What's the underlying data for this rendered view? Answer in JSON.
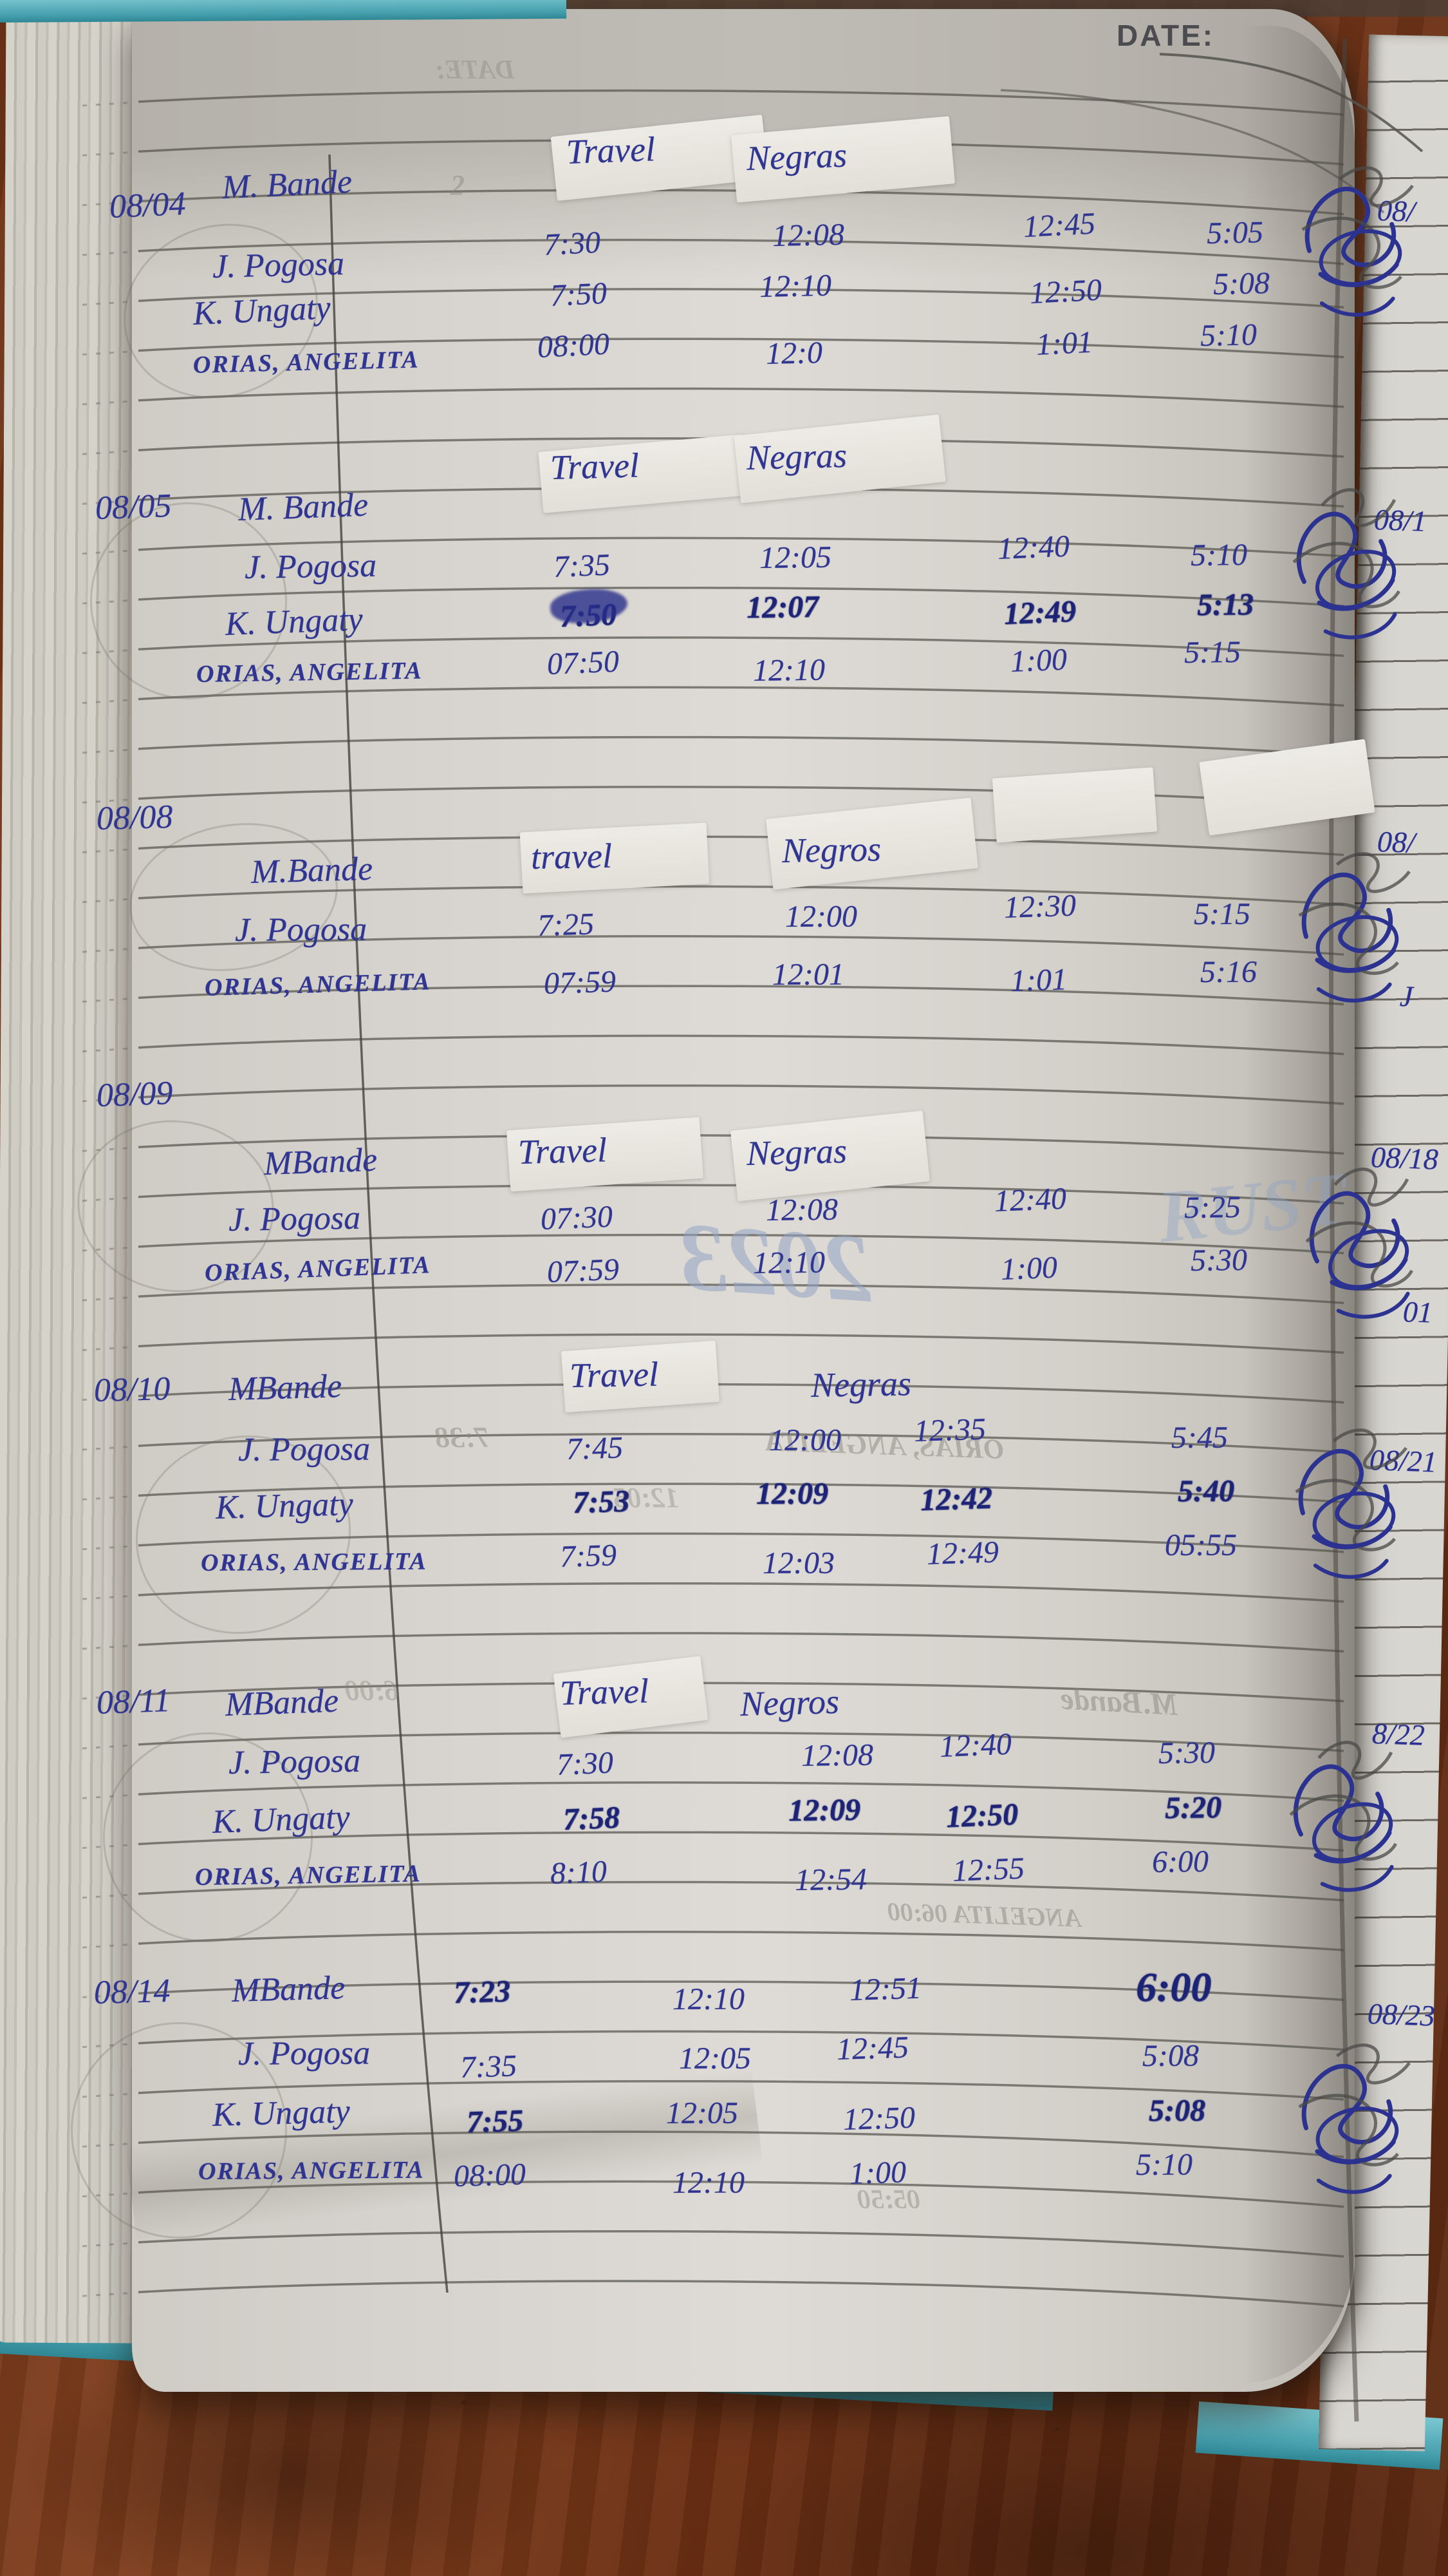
{
  "photo": {
    "date_label": "DATE:"
  },
  "page": {
    "column_headers": {
      "travel": "Travel",
      "negras": "Negras"
    },
    "blocks": [
      {
        "date": "08/04",
        "header": {
          "travel": "Travel",
          "negras": "Negras"
        },
        "rows": [
          {
            "name": "M. Bande",
            "cells": [
              "",
              "",
              "",
              ""
            ]
          },
          {
            "name": "J. Pogosa",
            "cells": [
              "7:30",
              "12:08",
              "12:45",
              "5:05"
            ]
          },
          {
            "name": "K. Ungaty",
            "cells": [
              "7:50",
              "12:10",
              "12:50",
              "5:08"
            ]
          },
          {
            "name": "ORIAS, ANGELITA",
            "cells": [
              "08:00",
              "12:0",
              "1:01",
              "5:10"
            ]
          }
        ]
      },
      {
        "date": "08/05",
        "header": {
          "travel": "Travel",
          "negras": "Negras"
        },
        "rows": [
          {
            "name": "M. Bande",
            "cells": [
              "",
              "",
              "",
              ""
            ]
          },
          {
            "name": "J. Pogosa",
            "cells": [
              "7:35",
              "12:05",
              "12:40",
              "5:10"
            ]
          },
          {
            "name": "K. Ungaty",
            "cells": [
              "7:50",
              "12:07",
              "12:49",
              "5:13"
            ],
            "bold": [
              0,
              1,
              2,
              3
            ]
          },
          {
            "name": "ORIAS, ANGELITA",
            "cells": [
              "07:50",
              "12:10",
              "1:00",
              "5:15"
            ]
          }
        ]
      },
      {
        "date": "08/08",
        "date_own_line": true,
        "header": {
          "travel": "travel",
          "negras": "Negros"
        },
        "rows": [
          {
            "name": "M.Bande",
            "cells": [
              "",
              "",
              "",
              ""
            ]
          },
          {
            "name": "J. Pogosa",
            "cells": [
              "7:25",
              "12:00",
              "12:30",
              "5:15"
            ]
          },
          {
            "name": "ORIAS, ANGELITA",
            "cells": [
              "07:59",
              "12:01",
              "1:01",
              "5:16"
            ]
          }
        ]
      },
      {
        "date": "08/09",
        "date_own_line": true,
        "header": {
          "travel": "Travel",
          "negras": "Negras"
        },
        "rows": [
          {
            "name": "MBande",
            "cells": [
              "",
              "",
              "",
              ""
            ]
          },
          {
            "name": "J. Pogosa",
            "cells": [
              "07:30",
              "12:08",
              "12:40",
              "5:25"
            ]
          },
          {
            "name": "ORIAS, ANGELITA",
            "cells": [
              "07:59",
              "12:10",
              "1:00",
              "5:30"
            ]
          }
        ]
      },
      {
        "date": "08/10",
        "header": {
          "travel": "Travel",
          "negras": "Negras"
        },
        "rows": [
          {
            "name": "MBande",
            "cells": [
              "",
              "",
              "",
              ""
            ]
          },
          {
            "name": "J. Pogosa",
            "cells": [
              "7:45",
              "12:00",
              "12:35",
              "5:45"
            ]
          },
          {
            "name": "K. Ungaty",
            "cells": [
              "7:53",
              "12:09",
              "12:42",
              "5:40"
            ],
            "bold": [
              0,
              1,
              2,
              3
            ]
          },
          {
            "name": "ORIAS, ANGELITA",
            "cells": [
              "7:59",
              "12:03",
              "12:49",
              "05:55"
            ]
          }
        ]
      },
      {
        "date": "08/11",
        "header": {
          "travel": "Travel",
          "negras": "Negros"
        },
        "rows": [
          {
            "name": "MBande",
            "cells": [
              "",
              "",
              "",
              ""
            ]
          },
          {
            "name": "J. Pogosa",
            "cells": [
              "7:30",
              "12:08",
              "12:40",
              "5:30"
            ]
          },
          {
            "name": "K. Ungaty",
            "cells": [
              "7:58",
              "12:09",
              "12:50",
              "5:20"
            ],
            "bold": [
              0,
              1,
              2,
              3
            ]
          },
          {
            "name": "ORIAS, ANGELITA",
            "cells": [
              "8:10",
              "12:54",
              "12:55",
              "6:00"
            ]
          }
        ]
      },
      {
        "date": "08/14",
        "rows": [
          {
            "name": "MBande",
            "cells": [
              "7:23",
              "12:10",
              "12:51",
              "6:00"
            ],
            "bold": [
              0,
              3
            ]
          },
          {
            "name": "J. Pogosa",
            "cells": [
              "7:35",
              "12:05",
              "12:45",
              "5:08"
            ]
          },
          {
            "name": "K. Ungaty",
            "cells": [
              "7:55",
              "12:05",
              "12:50",
              "5:08"
            ],
            "bold": [
              0,
              3
            ]
          },
          {
            "name": "ORIAS, ANGELITA",
            "cells": [
              "08:00",
              "12:10",
              "1:00",
              "5:10"
            ]
          }
        ]
      }
    ],
    "adjacent_page_fragments": [
      "08/",
      "08/1",
      "08/",
      "J",
      "08/18",
      "01",
      "08/21",
      "8/22",
      "08/23"
    ],
    "bleedthrough": [
      "DATE:",
      "2",
      "2023",
      "RUST",
      "7:38",
      "ORIAS, ANGELITA",
      "12:05",
      "M.Bande",
      "6:00",
      "ANGELITA 06:00",
      "05:50"
    ],
    "ink_color": "#2f3590",
    "paper_color": "#d6d3ce",
    "cover_color": "#47a0ae",
    "table_color": "#6e3317"
  }
}
